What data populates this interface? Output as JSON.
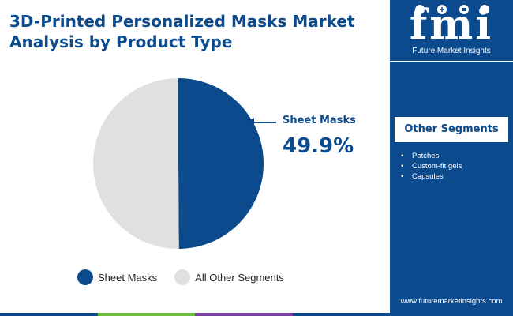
{
  "title": "3D-Printed Personalized Masks Market Analysis by Product Type",
  "brand": {
    "logo_text": "fmi",
    "name": "Future Market Insights",
    "website": "www.futuremarketinsights.com"
  },
  "sidebar": {
    "segments_title": "Other Segments",
    "segments": [
      "Patches",
      "Custom-fit gels",
      "Capsules"
    ]
  },
  "callout": {
    "label": "Sheet Masks",
    "value": "49.9%"
  },
  "colors": {
    "primary": "#0b4a8c",
    "other": "#e0e0e0",
    "bar": [
      "#0b4a8c",
      "#6cbf3d",
      "#7b3fa0",
      "#0b4a8c"
    ]
  },
  "chart_data": {
    "type": "pie",
    "title": "3D-Printed Personalized Masks Market Analysis by Product Type",
    "slices": [
      {
        "label": "Sheet Masks",
        "value": 49.9,
        "color": "#0b4a8c"
      },
      {
        "label": "All Other Segments",
        "value": 50.1,
        "color": "#e0e0e0"
      }
    ],
    "legend": [
      "Sheet Masks",
      "All Other Segments"
    ],
    "legend_position": "bottom"
  }
}
